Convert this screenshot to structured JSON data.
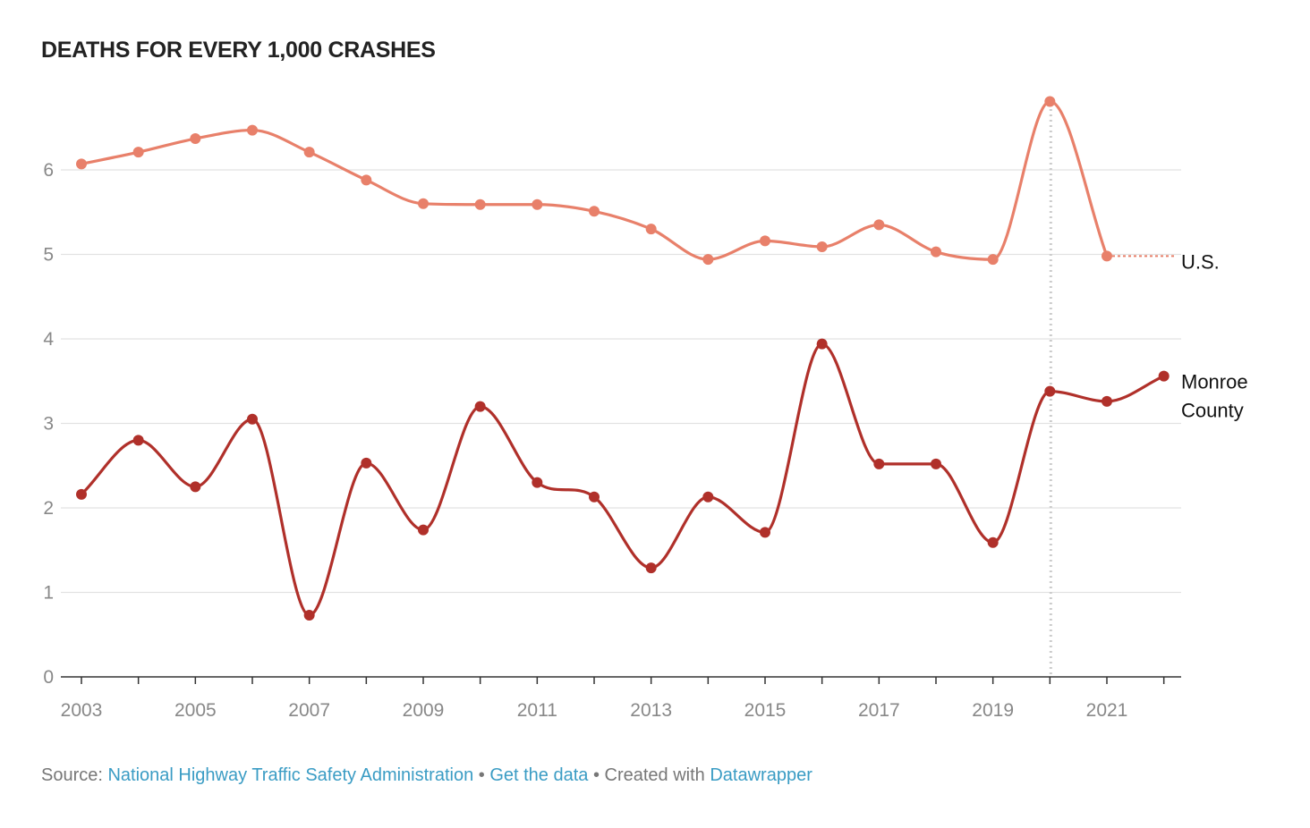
{
  "title": "DEATHS FOR EVERY 1,000 CRASHES",
  "chart_data": {
    "type": "line",
    "title": "DEATHS FOR EVERY 1,000 CRASHES",
    "x": [
      2003,
      2004,
      2005,
      2006,
      2007,
      2008,
      2009,
      2010,
      2011,
      2012,
      2013,
      2014,
      2015,
      2016,
      2017,
      2018,
      2019,
      2020,
      2021,
      2022
    ],
    "x_tick_labels": [
      "2003",
      "2005",
      "2007",
      "2009",
      "2011",
      "2013",
      "2015",
      "2017",
      "2019",
      "2021"
    ],
    "y_tick_labels": [
      "0",
      "1",
      "2",
      "3",
      "4",
      "5",
      "6"
    ],
    "ylim": [
      0,
      7
    ],
    "grid": "horizontal",
    "highlight_year": 2020,
    "series": [
      {
        "name": "U.S.",
        "color": "#e8806a",
        "values": [
          6.07,
          6.21,
          6.37,
          6.47,
          6.21,
          5.88,
          5.6,
          5.59,
          5.59,
          5.51,
          5.3,
          4.94,
          5.16,
          5.09,
          5.35,
          5.03,
          4.94,
          6.81,
          4.98,
          null
        ]
      },
      {
        "name": "Monroe County",
        "label_lines": [
          "Monroe",
          "County"
        ],
        "color": "#b0302a",
        "values": [
          2.16,
          2.8,
          2.25,
          3.05,
          0.73,
          2.53,
          1.74,
          3.2,
          2.3,
          2.13,
          1.29,
          2.13,
          1.71,
          3.94,
          2.52,
          2.52,
          1.59,
          3.38,
          3.26,
          3.56
        ]
      }
    ]
  },
  "footer": {
    "source_prefix": "Source: ",
    "source_link": "National Highway Traffic Safety Administration",
    "sep1": " • ",
    "get_data": "Get the data",
    "sep2": " • Created with ",
    "datawrapper": "Datawrapper"
  }
}
